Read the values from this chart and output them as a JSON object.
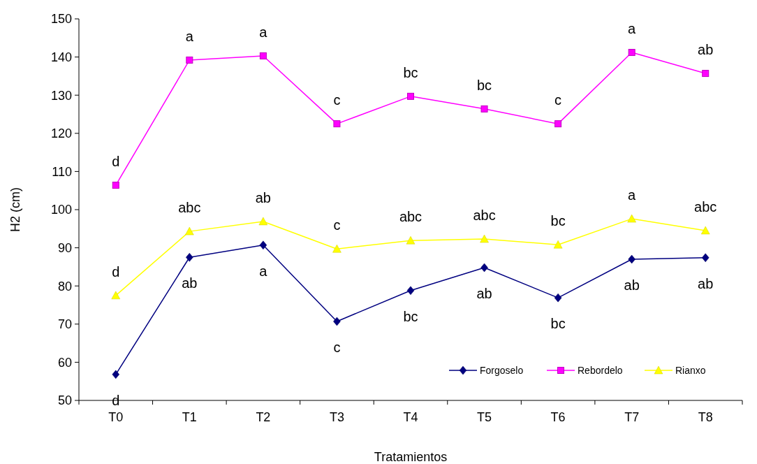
{
  "chart_data": {
    "type": "line",
    "xlabel": "Tratamientos",
    "ylabel": "H2 (cm)",
    "categories": [
      "T0",
      "T1",
      "T2",
      "T3",
      "T4",
      "T5",
      "T6",
      "T7",
      "T8"
    ],
    "series": [
      {
        "name": "Forgoselo",
        "color": "#000080",
        "marker": "diamond",
        "values": [
          56.8,
          87.5,
          90.7,
          70.7,
          78.8,
          84.8,
          76.9,
          87,
          87.4
        ]
      },
      {
        "name": "Rebordelo",
        "color": "#ff00ff",
        "marker": "square",
        "values": [
          106.4,
          139.2,
          140.3,
          122.5,
          129.7,
          126.4,
          122.5,
          141.2,
          135.7
        ]
      },
      {
        "name": "Rianxo",
        "color": "#ffff00",
        "marker": "triangle",
        "values": [
          77.5,
          94.3,
          96.9,
          89.7,
          91.9,
          92.3,
          90.8,
          97.6,
          94.5
        ]
      }
    ],
    "ylim": [
      50,
      150
    ],
    "yticks": [
      50,
      60,
      70,
      80,
      90,
      100,
      110,
      120,
      130,
      140,
      150
    ],
    "grid": false,
    "legend": "bottom right",
    "annotations": [
      {
        "text": "d",
        "x": "T0",
        "y": 106.4
      },
      {
        "text": "a",
        "x": "T1",
        "y": 139.2
      },
      {
        "text": "a",
        "x": "T2",
        "y": 140.3
      },
      {
        "text": "c",
        "x": "T3",
        "y": 122.5
      },
      {
        "text": "bc",
        "x": "T4",
        "y": 129.7
      },
      {
        "text": "bc",
        "x": "T5",
        "y": 126.4
      },
      {
        "text": "c",
        "x": "T6",
        "y": 122.5
      },
      {
        "text": "a",
        "x": "T7",
        "y": 141.2
      },
      {
        "text": "ab",
        "x": "T8",
        "y": 135.7
      },
      {
        "text": "d",
        "x": "T0",
        "y": 77.5
      },
      {
        "text": "abc",
        "x": "T1",
        "y": 94.3
      },
      {
        "text": "ab",
        "x": "T2",
        "y": 96.9
      },
      {
        "text": "c",
        "x": "T3",
        "y": 89.7
      },
      {
        "text": "abc",
        "x": "T4",
        "y": 91.9
      },
      {
        "text": "abc",
        "x": "T5",
        "y": 92.3
      },
      {
        "text": "bc",
        "x": "T6",
        "y": 90.8
      },
      {
        "text": "a",
        "x": "T7",
        "y": 97.6
      },
      {
        "text": "abc",
        "x": "T8",
        "y": 94.5
      },
      {
        "text": "d",
        "x": "T0",
        "y": 56.8
      },
      {
        "text": "ab",
        "x": "T1",
        "y": 87.5
      },
      {
        "text": "a",
        "x": "T2",
        "y": 90.7
      },
      {
        "text": "c",
        "x": "T3",
        "y": 70.7
      },
      {
        "text": "bc",
        "x": "T4",
        "y": 78.8
      },
      {
        "text": "ab",
        "x": "T5",
        "y": 84.8
      },
      {
        "text": "bc",
        "x": "T6",
        "y": 76.9
      },
      {
        "text": "ab",
        "x": "T7",
        "y": 87
      },
      {
        "text": "ab",
        "x": "T8",
        "y": 87.4
      }
    ]
  }
}
